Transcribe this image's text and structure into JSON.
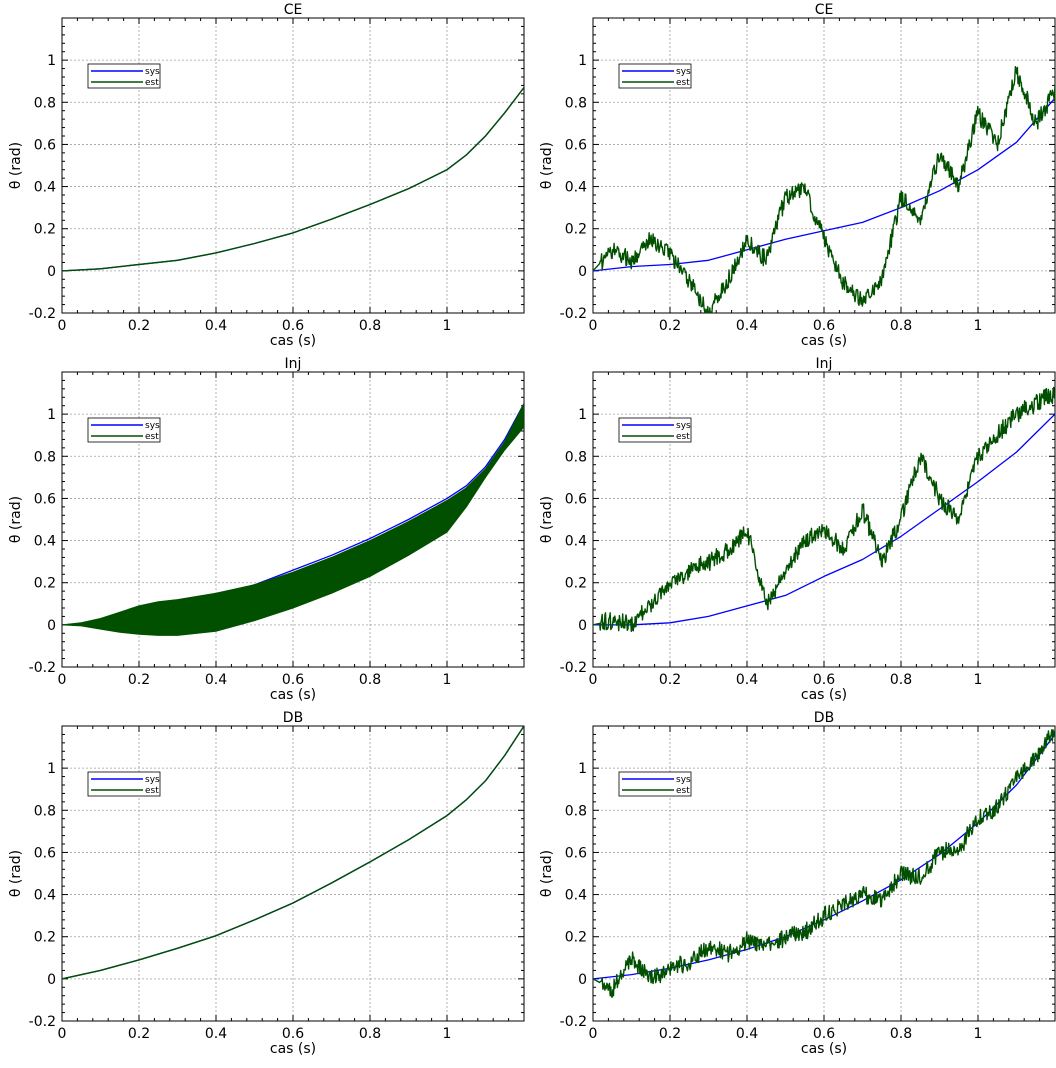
{
  "colors": {
    "sys": "#0000ff",
    "est": "#005000",
    "grid": "#a0a0a0"
  },
  "figure": {
    "panels": [
      {
        "id": "ce-left",
        "row": 0,
        "col": 0,
        "title": "CE",
        "xlabel": "cas (s)",
        "ylabel": "θ (rad)",
        "legend": [
          "sys",
          "est"
        ],
        "legend_placement": "top-left"
      },
      {
        "id": "ce-right",
        "row": 0,
        "col": 1,
        "title": "CE",
        "xlabel": "cas (s)",
        "ylabel": "θ (rad)",
        "legend": [
          "sys",
          "est"
        ],
        "legend_placement": "top-left"
      },
      {
        "id": "inj-left",
        "row": 1,
        "col": 0,
        "title": "Inj",
        "xlabel": "cas (s)",
        "ylabel": "θ (rad)",
        "legend": [
          "sys",
          "est"
        ],
        "legend_placement": "top-left"
      },
      {
        "id": "inj-right",
        "row": 1,
        "col": 1,
        "title": "Inj",
        "xlabel": "cas (s)",
        "ylabel": "θ (rad)",
        "legend": [
          "sys",
          "est"
        ],
        "legend_placement": "top-left"
      },
      {
        "id": "db-left",
        "row": 2,
        "col": 0,
        "title": "DB",
        "xlabel": "cas (s)",
        "ylabel": "θ (rad)",
        "legend": [
          "sys",
          "est"
        ],
        "legend_placement": "top-left"
      },
      {
        "id": "db-right",
        "row": 2,
        "col": 1,
        "title": "DB",
        "xlabel": "cas (s)",
        "ylabel": "θ (rad)",
        "legend": [
          "sys",
          "est"
        ],
        "legend_placement": "top-left"
      }
    ]
  },
  "chart_data": [
    {
      "type": "line",
      "title": "CE",
      "xlabel": "cas (s)",
      "ylabel": "θ (rad)",
      "xlim": [
        0,
        1.2
      ],
      "ylim": [
        -0.2,
        1.2
      ],
      "xticks": [
        "0",
        "0.2",
        "0.4",
        "0.6",
        "0.8",
        "1"
      ],
      "yticks": [
        "-0.2",
        "0",
        "0.2",
        "0.4",
        "0.6",
        "0.8",
        "1"
      ],
      "grid": true,
      "legend": "top-left",
      "series": [
        {
          "name": "sys",
          "color": "#0000ff",
          "x": [
            0,
            0.1,
            0.2,
            0.3,
            0.4,
            0.5,
            0.6,
            0.7,
            0.8,
            0.9,
            1.0,
            1.05,
            1.1,
            1.15,
            1.2
          ],
          "y": [
            0,
            0.01,
            0.03,
            0.05,
            0.085,
            0.13,
            0.18,
            0.245,
            0.315,
            0.39,
            0.48,
            0.55,
            0.64,
            0.75,
            0.87
          ]
        },
        {
          "name": "est",
          "color": "#005000",
          "x": [
            0,
            0.1,
            0.2,
            0.3,
            0.4,
            0.5,
            0.6,
            0.7,
            0.8,
            0.9,
            1.0,
            1.05,
            1.1,
            1.15,
            1.2
          ],
          "y": [
            0,
            0.01,
            0.03,
            0.05,
            0.085,
            0.13,
            0.18,
            0.245,
            0.315,
            0.39,
            0.48,
            0.55,
            0.64,
            0.75,
            0.87
          ]
        }
      ]
    },
    {
      "type": "line",
      "title": "CE",
      "xlabel": "cas (s)",
      "ylabel": "θ (rad)",
      "xlim": [
        0,
        1.2
      ],
      "ylim": [
        -0.2,
        1.2
      ],
      "xticks": [
        "0",
        "0.2",
        "0.4",
        "0.6",
        "0.8",
        "1"
      ],
      "yticks": [
        "-0.2",
        "0",
        "0.2",
        "0.4",
        "0.6",
        "0.8",
        "1"
      ],
      "grid": true,
      "legend": "top-left",
      "series": [
        {
          "name": "sys",
          "color": "#0000ff",
          "x": [
            0,
            0.1,
            0.2,
            0.3,
            0.4,
            0.5,
            0.6,
            0.7,
            0.8,
            0.9,
            1.0,
            1.1,
            1.2
          ],
          "y": [
            0,
            0.02,
            0.03,
            0.05,
            0.1,
            0.15,
            0.19,
            0.23,
            0.3,
            0.38,
            0.48,
            0.61,
            0.82
          ]
        },
        {
          "name": "est",
          "color": "#005000",
          "x": [
            0,
            0.05,
            0.1,
            0.15,
            0.2,
            0.25,
            0.3,
            0.35,
            0.4,
            0.45,
            0.5,
            0.55,
            0.6,
            0.65,
            0.7,
            0.75,
            0.8,
            0.85,
            0.9,
            0.95,
            1.0,
            1.05,
            1.1,
            1.15,
            1.2
          ],
          "y": [
            0,
            0.1,
            0.05,
            0.15,
            0.08,
            -0.05,
            -0.2,
            -0.05,
            0.15,
            0.05,
            0.35,
            0.4,
            0.15,
            -0.05,
            -0.15,
            -0.05,
            0.35,
            0.25,
            0.55,
            0.4,
            0.75,
            0.6,
            0.95,
            0.7,
            0.85
          ]
        }
      ]
    },
    {
      "type": "area",
      "title": "Inj",
      "xlabel": "cas (s)",
      "ylabel": "θ (rad)",
      "xlim": [
        0,
        1.2
      ],
      "ylim": [
        -0.2,
        1.2
      ],
      "xticks": [
        "0",
        "0.2",
        "0.4",
        "0.6",
        "0.8",
        "1"
      ],
      "yticks": [
        "-0.2",
        "0",
        "0.2",
        "0.4",
        "0.6",
        "0.8",
        "1"
      ],
      "grid": true,
      "legend": "top-left",
      "series": [
        {
          "name": "sys",
          "color": "#0000ff",
          "x": [
            0,
            0.1,
            0.2,
            0.3,
            0.4,
            0.5,
            0.6,
            0.7,
            0.8,
            0.9,
            1.0,
            1.05,
            1.1,
            1.15,
            1.2
          ],
          "y": [
            0,
            0.01,
            0.04,
            0.08,
            0.13,
            0.19,
            0.26,
            0.33,
            0.41,
            0.5,
            0.6,
            0.66,
            0.75,
            0.88,
            1.05
          ]
        },
        {
          "name": "est",
          "color": "#005000",
          "x": [
            0,
            0.05,
            0.1,
            0.15,
            0.2,
            0.25,
            0.3,
            0.4,
            0.5,
            0.6,
            0.7,
            0.8,
            0.9,
            1.0,
            1.05,
            1.1,
            1.15,
            1.2
          ],
          "upper": [
            0,
            0.01,
            0.03,
            0.06,
            0.09,
            0.11,
            0.12,
            0.15,
            0.19,
            0.25,
            0.32,
            0.4,
            0.49,
            0.59,
            0.65,
            0.74,
            0.87,
            1.05
          ],
          "lower": [
            0,
            -0.005,
            -0.02,
            -0.035,
            -0.045,
            -0.05,
            -0.05,
            -0.03,
            0.02,
            0.08,
            0.15,
            0.23,
            0.33,
            0.44,
            0.56,
            0.7,
            0.83,
            0.94
          ]
        }
      ]
    },
    {
      "type": "line",
      "title": "Inj",
      "xlabel": "cas (s)",
      "ylabel": "θ (rad)",
      "xlim": [
        0,
        1.2
      ],
      "ylim": [
        -0.2,
        1.2
      ],
      "xticks": [
        "0",
        "0.2",
        "0.4",
        "0.6",
        "0.8",
        "1"
      ],
      "yticks": [
        "-0.2",
        "0",
        "0.2",
        "0.4",
        "0.6",
        "0.8",
        "1"
      ],
      "grid": true,
      "legend": "top-left",
      "series": [
        {
          "name": "sys",
          "color": "#0000ff",
          "x": [
            0,
            0.1,
            0.2,
            0.3,
            0.4,
            0.5,
            0.6,
            0.7,
            0.8,
            0.9,
            1.0,
            1.1,
            1.2
          ],
          "y": [
            0,
            0.0,
            0.01,
            0.04,
            0.09,
            0.14,
            0.23,
            0.31,
            0.42,
            0.55,
            0.68,
            0.82,
            1.0
          ]
        },
        {
          "name": "est",
          "color": "#005000",
          "x": [
            0,
            0.05,
            0.1,
            0.15,
            0.2,
            0.25,
            0.3,
            0.35,
            0.4,
            0.45,
            0.5,
            0.55,
            0.6,
            0.65,
            0.7,
            0.75,
            0.8,
            0.85,
            0.9,
            0.95,
            1.0,
            1.05,
            1.1,
            1.15,
            1.2
          ],
          "y": [
            0,
            0.02,
            0.0,
            0.1,
            0.2,
            0.25,
            0.3,
            0.35,
            0.45,
            0.1,
            0.25,
            0.4,
            0.45,
            0.35,
            0.55,
            0.3,
            0.5,
            0.8,
            0.6,
            0.5,
            0.8,
            0.9,
            1.0,
            1.05,
            1.1
          ]
        }
      ]
    },
    {
      "type": "line",
      "title": "DB",
      "xlabel": "cas (s)",
      "ylabel": "θ (rad)",
      "xlim": [
        0,
        1.2
      ],
      "ylim": [
        -0.2,
        1.2
      ],
      "xticks": [
        "0",
        "0.2",
        "0.4",
        "0.6",
        "0.8",
        "1"
      ],
      "yticks": [
        "-0.2",
        "0",
        "0.2",
        "0.4",
        "0.6",
        "0.8",
        "1"
      ],
      "grid": true,
      "legend": "top-left",
      "series": [
        {
          "name": "sys",
          "color": "#0000ff",
          "x": [
            0,
            0.1,
            0.2,
            0.3,
            0.4,
            0.5,
            0.6,
            0.7,
            0.8,
            0.9,
            1.0,
            1.05,
            1.1,
            1.15,
            1.2
          ],
          "y": [
            0,
            0.04,
            0.09,
            0.145,
            0.205,
            0.28,
            0.36,
            0.455,
            0.555,
            0.66,
            0.775,
            0.85,
            0.94,
            1.06,
            1.2
          ]
        },
        {
          "name": "est",
          "color": "#005000",
          "x": [
            0,
            0.1,
            0.2,
            0.3,
            0.4,
            0.5,
            0.6,
            0.7,
            0.8,
            0.9,
            1.0,
            1.05,
            1.1,
            1.15,
            1.2
          ],
          "y": [
            0,
            0.04,
            0.09,
            0.145,
            0.205,
            0.28,
            0.36,
            0.455,
            0.555,
            0.66,
            0.775,
            0.85,
            0.94,
            1.06,
            1.2
          ]
        }
      ]
    },
    {
      "type": "line",
      "title": "DB",
      "xlabel": "cas (s)",
      "ylabel": "θ (rad)",
      "xlim": [
        0,
        1.2
      ],
      "ylim": [
        -0.2,
        1.2
      ],
      "xticks": [
        "0",
        "0.2",
        "0.4",
        "0.6",
        "0.8",
        "1"
      ],
      "yticks": [
        "-0.2",
        "0",
        "0.2",
        "0.4",
        "0.6",
        "0.8",
        "1"
      ],
      "grid": true,
      "legend": "top-left",
      "series": [
        {
          "name": "sys",
          "color": "#0000ff",
          "x": [
            0,
            0.1,
            0.2,
            0.3,
            0.4,
            0.5,
            0.6,
            0.7,
            0.8,
            0.9,
            1.0,
            1.1,
            1.2
          ],
          "y": [
            0,
            0.02,
            0.05,
            0.09,
            0.14,
            0.2,
            0.28,
            0.37,
            0.47,
            0.59,
            0.74,
            0.92,
            1.16
          ]
        },
        {
          "name": "est",
          "color": "#005000",
          "x": [
            0,
            0.05,
            0.1,
            0.15,
            0.2,
            0.25,
            0.3,
            0.35,
            0.4,
            0.45,
            0.5,
            0.55,
            0.6,
            0.65,
            0.7,
            0.75,
            0.8,
            0.85,
            0.9,
            0.95,
            1.0,
            1.05,
            1.1,
            1.15,
            1.2
          ],
          "y": [
            0,
            -0.05,
            0.1,
            0.0,
            0.05,
            0.08,
            0.15,
            0.12,
            0.18,
            0.15,
            0.2,
            0.22,
            0.3,
            0.35,
            0.4,
            0.38,
            0.5,
            0.48,
            0.6,
            0.62,
            0.75,
            0.82,
            0.95,
            1.05,
            1.18
          ]
        }
      ]
    }
  ]
}
